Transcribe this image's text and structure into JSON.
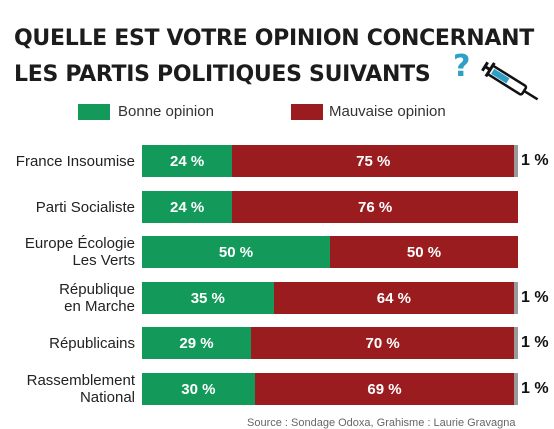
{
  "title_line1": "QUELLE EST VOTRE OPINION CONCERNANT",
  "title_line2": "LES PARTIS POLITIQUES SUIVANTS",
  "question_mark": "?",
  "colors": {
    "good": "#139a5b",
    "bad": "#9b1c1f",
    "other": "#9a9a9a",
    "accent": "#2e9fc6"
  },
  "source": "Source : Sondage Odoxa, Grahisme : Laurie Gravagna",
  "chart_data": {
    "type": "bar",
    "orientation": "horizontal",
    "stacked": true,
    "series": [
      {
        "name": "Bonne opinion",
        "values": [
          24,
          24,
          50,
          35,
          29,
          30
        ]
      },
      {
        "name": "Mauvaise opinion",
        "values": [
          75,
          76,
          50,
          64,
          70,
          69
        ]
      }
    ],
    "categories": [
      "France Insoumise",
      "Parti Socialiste",
      "Europe Écologie\nLes Verts",
      "République\nen Marche",
      "Républicains",
      "Rassemblement\nNational"
    ],
    "segment_labels": [
      [
        "24 %",
        "75 %"
      ],
      [
        "24 %",
        "76 %"
      ],
      [
        "50 %",
        "50 %"
      ],
      [
        "35 %",
        "64 %"
      ],
      [
        "29 %",
        "70 %"
      ],
      [
        "30 %",
        "69 %"
      ]
    ],
    "other_labels": [
      "1 %",
      "",
      "",
      "1 %",
      "1 %",
      "1 %"
    ],
    "legend_position": "top"
  }
}
